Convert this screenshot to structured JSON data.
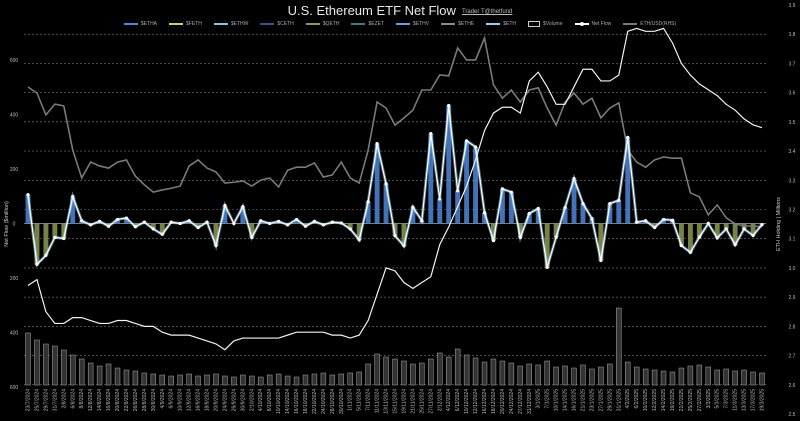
{
  "title": "U.S. Ethereum ETF Net Flow",
  "subtitle": "Trader T@thetfund",
  "chart_data": {
    "type": "bar+line",
    "title": "U.S. Ethereum ETF Net Flow",
    "ylabel": "Net Flow ($million)",
    "y2label": "ETH Holding | Millions",
    "ylim": [
      -600,
      600
    ],
    "y2lim": [
      2.5,
      3.9
    ],
    "yticks": [
      "600",
      "400",
      "200",
      "0",
      "200",
      "400",
      "600"
    ],
    "ytick_colors": [
      "#cccccc",
      "#cccccc",
      "#cccccc",
      "#cccccc",
      "#c83030",
      "#c83030",
      "#c83030"
    ],
    "y2ticks": [
      "3.9",
      "3.8",
      "3.7",
      "3.6",
      "3.5",
      "3.4",
      "3.3",
      "3.2",
      "3.1",
      "3.0",
      "2.9",
      "2.8",
      "2.7",
      "2.6",
      "2.5"
    ],
    "grid": true,
    "legend_position": "top",
    "legend": [
      {
        "name": "$ETHA",
        "color": "#4f86d8",
        "kind": "bar"
      },
      {
        "name": "$FETH",
        "color": "#b8d96b",
        "kind": "bar"
      },
      {
        "name": "$ETHW",
        "color": "#7ec8e3",
        "kind": "bar"
      },
      {
        "name": "$CETH",
        "color": "#34558f",
        "kind": "bar"
      },
      {
        "name": "$QETH",
        "color": "#8c9a52",
        "kind": "bar"
      },
      {
        "name": "$EZET",
        "color": "#3b7b8a",
        "kind": "bar"
      },
      {
        "name": "$ETHV",
        "color": "#6c9be0",
        "kind": "bar"
      },
      {
        "name": "$ETHE",
        "color": "#8a8a8a",
        "kind": "bar"
      },
      {
        "name": "$ETH",
        "color": "#92d2f0",
        "kind": "bar"
      },
      {
        "name": "$Volume",
        "color": "#cccccc",
        "kind": "box"
      },
      {
        "name": "Net Flow",
        "color": "#ffffff",
        "kind": "dot"
      },
      {
        "name": "ETH/USD(RHS)",
        "color": "#7a7a7a",
        "kind": "line"
      }
    ],
    "x": [
      "23/7/2024",
      "25/7/2024",
      "29/7/2024",
      "31/7/2024",
      "2/8/2024",
      "6/8/2024",
      "8/8/2024",
      "12/8/2024",
      "14/8/2024",
      "16/8/2024",
      "20/8/2024",
      "22/8/2024",
      "26/8/2024",
      "28/8/2024",
      "30/8/2024",
      "4/9/2024",
      "6/9/2024",
      "10/9/2024",
      "12/9/2024",
      "16/9/2024",
      "18/9/2024",
      "20/9/2024",
      "24/9/2024",
      "26/9/2024",
      "30/9/2024",
      "2/10/2024",
      "4/10/2024",
      "8/10/2024",
      "10/10/2024",
      "14/10/2024",
      "16/10/2024",
      "18/10/2024",
      "22/10/2024",
      "24/10/2024",
      "28/10/2024",
      "30/10/2024",
      "1/11/2024",
      "5/11/2024",
      "7/11/2024",
      "11/11/2024",
      "13/11/2024",
      "15/11/2024",
      "19/11/2024",
      "21/11/2024",
      "25/11/2024",
      "27/11/2024",
      "2/12/2024",
      "4/12/2024",
      "6/12/2024",
      "10/12/2024",
      "12/12/2024",
      "16/12/2024",
      "18/12/2024",
      "20/12/2024",
      "24/12/2024",
      "27/12/2024",
      "31/12/2024",
      "3/1/2025",
      "7/1/2025",
      "10/1/2025",
      "14/1/2025",
      "16/1/2025",
      "21/1/2025",
      "23/1/2025",
      "27/1/2025",
      "29/1/2025",
      "31/1/2025",
      "4/2/2025",
      "6/2/2025",
      "10/2/2025",
      "12/2/2025",
      "14/2/2025",
      "19/2/2025",
      "21/2/2025",
      "25/2/2025",
      "27/2/2025",
      "3/3/2025",
      "5/3/2025",
      "7/3/2025",
      "11/3/2025",
      "13/3/2025",
      "17/3/2025",
      "19/3/2025"
    ],
    "net_flow": [
      106,
      -150,
      -117,
      -51,
      -55,
      99,
      10,
      -5,
      8,
      -10,
      15,
      20,
      -12,
      5,
      -20,
      -40,
      5,
      0,
      10,
      -15,
      5,
      -81,
      66,
      0,
      62,
      -51,
      10,
      0,
      8,
      -5,
      15,
      -10,
      8,
      -5,
      5,
      2,
      -20,
      -60,
      80,
      293,
      146,
      -45,
      -82,
      60,
      10,
      330,
      90,
      433,
      120,
      303,
      281,
      40,
      -63,
      127,
      115,
      -51,
      37,
      55,
      -161,
      -50,
      59,
      165,
      73,
      18,
      -136,
      73,
      85,
      316,
      5,
      10,
      -15,
      15,
      12,
      -81,
      -106,
      -50,
      0,
      -53,
      -20,
      -78,
      -20,
      -44,
      -4
    ],
    "eth_holding_millions": [
      2.94,
      2.96,
      2.85,
      2.81,
      2.81,
      2.83,
      2.83,
      2.82,
      2.81,
      2.81,
      2.82,
      2.82,
      2.81,
      2.8,
      2.8,
      2.78,
      2.77,
      2.77,
      2.77,
      2.76,
      2.75,
      2.74,
      2.72,
      2.75,
      2.76,
      2.76,
      2.76,
      2.76,
      2.76,
      2.77,
      2.78,
      2.78,
      2.78,
      2.78,
      2.77,
      2.77,
      2.76,
      2.77,
      2.82,
      2.91,
      3.0,
      2.99,
      2.95,
      2.93,
      2.95,
      2.97,
      3.08,
      3.14,
      3.21,
      3.28,
      3.37,
      3.47,
      3.53,
      3.55,
      3.55,
      3.53,
      3.64,
      3.67,
      3.62,
      3.56,
      3.56,
      3.62,
      3.68,
      3.68,
      3.64,
      3.64,
      3.66,
      3.81,
      3.82,
      3.81,
      3.81,
      3.82,
      3.77,
      3.7,
      3.66,
      3.63,
      3.61,
      3.59,
      3.56,
      3.54,
      3.51,
      3.49,
      3.48
    ],
    "eth_usd": [
      3500,
      3430,
      3175,
      3300,
      3280,
      2765,
      2440,
      2625,
      2580,
      2555,
      2625,
      2650,
      2460,
      2360,
      2275,
      2300,
      2320,
      2345,
      2580,
      2650,
      2555,
      2510,
      2380,
      2390,
      2405,
      2345,
      2415,
      2440,
      2335,
      2530,
      2565,
      2565,
      2615,
      2450,
      2475,
      2625,
      2440,
      2380,
      2765,
      3325,
      3255,
      3055,
      3140,
      3230,
      3465,
      3465,
      3640,
      3630,
      3955,
      3815,
      3815,
      4070,
      3525,
      3370,
      3465,
      3325,
      3465,
      3490,
      3255,
      3055,
      3325,
      3430,
      3300,
      3370,
      3140,
      3255,
      3315,
      2765,
      2625,
      2565,
      2650,
      2685,
      2670,
      2670,
      2265,
      2220,
      2010,
      2125,
      1975,
      1905,
      1880,
      1880,
      1870
    ],
    "volume_musd": [
      1040,
      900,
      820,
      780,
      700,
      600,
      520,
      440,
      380,
      420,
      340,
      300,
      280,
      240,
      220,
      200,
      180,
      200,
      220,
      180,
      200,
      220,
      180,
      160,
      200,
      180,
      160,
      200,
      220,
      180,
      160,
      200,
      220,
      240,
      200,
      220,
      240,
      260,
      420,
      620,
      560,
      520,
      480,
      420,
      440,
      520,
      640,
      560,
      720,
      600,
      540,
      460,
      520,
      480,
      440,
      380,
      420,
      400,
      480,
      360,
      380,
      340,
      400,
      320,
      360,
      420,
      1540,
      460,
      360,
      320,
      300,
      280,
      260,
      340,
      380,
      400,
      360,
      300,
      320,
      280,
      300,
      260,
      240
    ]
  }
}
